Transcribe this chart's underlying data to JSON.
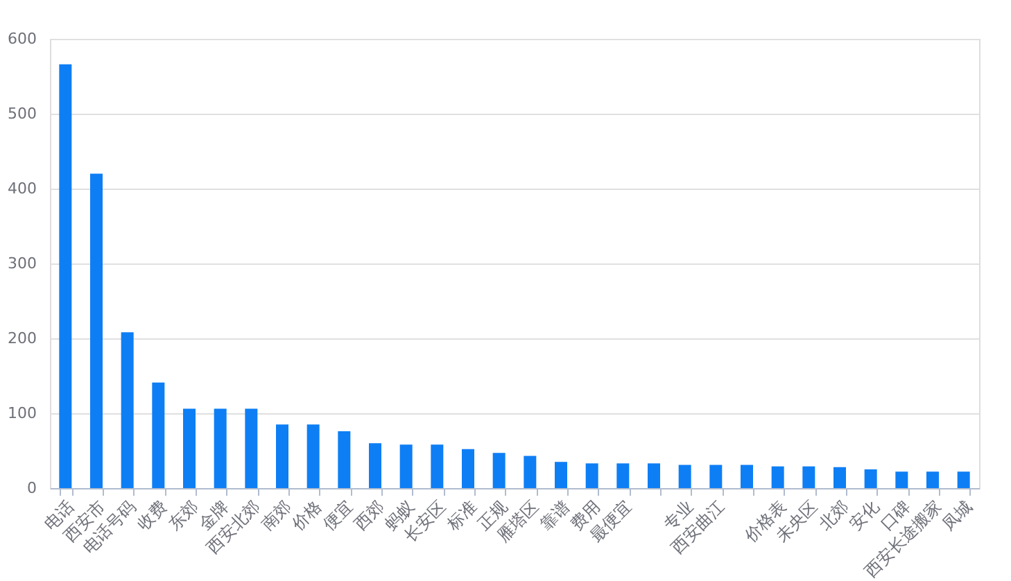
{
  "chart_data": {
    "type": "bar",
    "categories": [
      "电话",
      "西安市",
      "电话号码",
      "收费",
      "东郊",
      "金牌",
      "西安北郊",
      "南郊",
      "价格",
      "便宜",
      "西郊",
      "蚂蚁",
      "长安区",
      "标准",
      "正规",
      "雁塔区",
      "靠谱",
      "费用",
      "最便宜",
      null,
      "专业",
      "西安曲江",
      null,
      "价格表",
      "未央区",
      "北郊",
      "安化",
      "口碑",
      "西安长途搬家",
      "凤城"
    ],
    "values": [
      566,
      420,
      208,
      141,
      106,
      106,
      106,
      85,
      85,
      76,
      60,
      58,
      58,
      52,
      47,
      43,
      35,
      33,
      33,
      33,
      31,
      31,
      31,
      29,
      29,
      28,
      25,
      22,
      22,
      22
    ],
    "color": "#0e7ef5",
    "ylim": [
      0,
      600
    ],
    "yticks": [
      0,
      100,
      200,
      300,
      400,
      500,
      600
    ],
    "grid": "y"
  }
}
